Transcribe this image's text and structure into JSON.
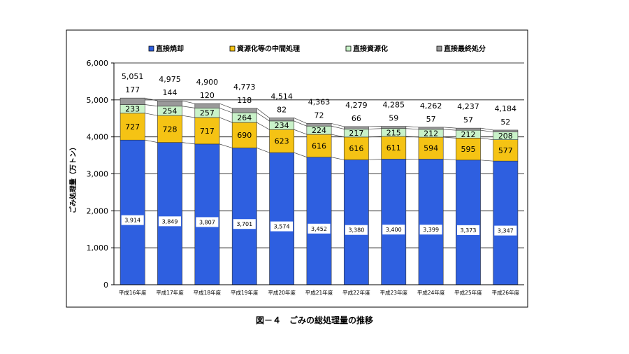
{
  "chart_data": {
    "type": "bar",
    "stacked": true,
    "categories": [
      "平成16年度",
      "平成17年度",
      "平成18年度",
      "平成19年度",
      "平成20年度",
      "平成21年度",
      "平成22年度",
      "平成23年度",
      "平成24年度",
      "平成25年度",
      "平成26年度"
    ],
    "series": [
      {
        "name": "直接焼却",
        "color": "#2e5fe0",
        "values": [
          3914,
          3849,
          3807,
          3701,
          3574,
          3452,
          3380,
          3400,
          3399,
          3373,
          3347
        ],
        "labels": [
          "3,914",
          "3,849",
          "3,807",
          "3,701",
          "3,574",
          "3,452",
          "3,380",
          "3,400",
          "3,399",
          "3,373",
          "3,347"
        ]
      },
      {
        "name": "資源化等の中間処理",
        "color": "#f5c314",
        "values": [
          727,
          728,
          717,
          690,
          623,
          616,
          616,
          611,
          594,
          595,
          577
        ],
        "labels": [
          "727",
          "728",
          "717",
          "690",
          "623",
          "616",
          "616",
          "611",
          "594",
          "595",
          "577"
        ]
      },
      {
        "name": "直接資源化",
        "color": "#c9f2c9",
        "values": [
          233,
          254,
          257,
          264,
          234,
          224,
          217,
          215,
          212,
          212,
          208
        ],
        "labels": [
          "233",
          "254",
          "257",
          "264",
          "234",
          "224",
          "217",
          "215",
          "212",
          "212",
          "208"
        ]
      },
      {
        "name": "直接最終処分",
        "color": "#9a9a9a",
        "values": [
          177,
          144,
          120,
          118,
          82,
          72,
          66,
          59,
          57,
          57,
          52
        ],
        "labels": [
          "177",
          "144",
          "120",
          "118",
          "82",
          "72",
          "66",
          "59",
          "57",
          "57",
          "52"
        ]
      }
    ],
    "totals": [
      5051,
      4975,
      4900,
      4773,
      4514,
      4363,
      4279,
      4285,
      4262,
      4237,
      4184
    ],
    "total_labels": [
      "5,051",
      "4,975",
      "4,900",
      "4,773",
      "4,514",
      "4,363",
      "4,279",
      "4,285",
      "4,262",
      "4,237",
      "4,184"
    ],
    "ylabel": "ごみ処理量（万トン）",
    "ylim": [
      0,
      6000
    ],
    "yticks": [
      0,
      1000,
      2000,
      3000,
      4000,
      5000,
      6000
    ],
    "ytick_labels": [
      "0",
      "1,000",
      "2,000",
      "3,000",
      "4,000",
      "5,000",
      "6,000"
    ],
    "legend_position": "top",
    "grid": true
  },
  "caption": "図－４　ごみの総処理量の推移"
}
